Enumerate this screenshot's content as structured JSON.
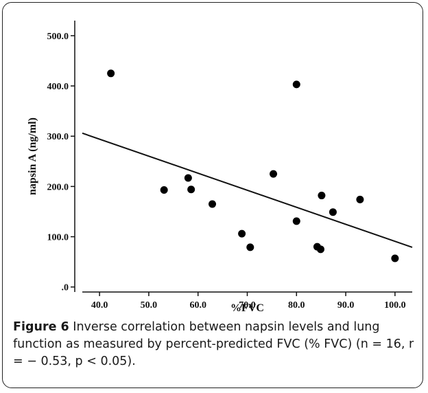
{
  "chart_data": {
    "type": "scatter",
    "xlabel": "%FVC",
    "ylabel": "napsin A (ng/ml)",
    "xlim": [
      36.5,
      103.5
    ],
    "ylim": [
      -10,
      530
    ],
    "x_ticks": [
      40,
      50,
      60,
      70,
      80,
      90,
      100
    ],
    "x_tick_labels": [
      "40.0",
      "50.0",
      "60.0",
      "70.0",
      "80.0",
      "90.0",
      "100.0"
    ],
    "y_ticks": [
      0,
      100,
      200,
      300,
      400,
      500
    ],
    "y_tick_labels": [
      ".0",
      "100.0",
      "200.0",
      "300.0",
      "400.0",
      "500.0"
    ],
    "grid": false,
    "points": [
      {
        "x": 42.3,
        "y": 425
      },
      {
        "x": 53.1,
        "y": 193
      },
      {
        "x": 58.0,
        "y": 217
      },
      {
        "x": 58.6,
        "y": 194
      },
      {
        "x": 62.9,
        "y": 165
      },
      {
        "x": 68.9,
        "y": 106
      },
      {
        "x": 70.6,
        "y": 79
      },
      {
        "x": 75.3,
        "y": 225
      },
      {
        "x": 80.0,
        "y": 403
      },
      {
        "x": 80.0,
        "y": 131
      },
      {
        "x": 84.2,
        "y": 80
      },
      {
        "x": 84.9,
        "y": 75
      },
      {
        "x": 85.1,
        "y": 182
      },
      {
        "x": 87.4,
        "y": 149
      },
      {
        "x": 92.9,
        "y": 174
      },
      {
        "x": 100.0,
        "y": 57
      }
    ],
    "fit_line": {
      "x": [
        36.5,
        103.5
      ],
      "y": [
        306,
        79
      ]
    }
  },
  "caption": {
    "label": "Figure 6",
    "text": " Inverse correlation between napsin levels and lung function as measured by percent-predicted FVC (% FVC) (n = 16, r = − 0.53, p < 0.05)."
  }
}
